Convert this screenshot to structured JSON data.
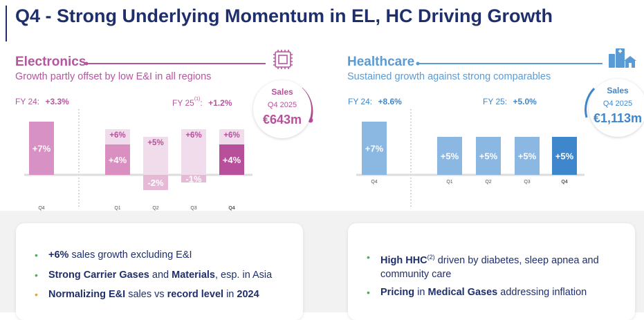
{
  "title": "Q4 - Strong Underlying Momentum in EL, HC Driving Growth",
  "electronics": {
    "name": "Electronics",
    "subtitle": "Growth partly offset by low E&I in all regions",
    "fy24_label": "FY 24:",
    "fy24_value": "+3.3%",
    "fy25_label": "FY 25",
    "fy25_footnote": "(1)",
    "fy25_colon": ":",
    "fy25_value": "+1.2%",
    "sales_label": "Sales",
    "sales_period": "Q4 2025",
    "sales_value": "€643m",
    "icon": "chip-icon",
    "colors": {
      "title": "#b5559e",
      "dark": "#b84f9b",
      "light": "#e8c9dd",
      "fy24": "#d891c4",
      "total_label": "#b84f9b"
    }
  },
  "healthcare": {
    "name": "Healthcare",
    "subtitle": "Sustained growth against strong comparables",
    "fy24_label": "FY 24:",
    "fy24_value": "+8.6%",
    "fy25_label": "FY 25:",
    "fy25_value": "+5.0%",
    "sales_label": "Sales",
    "sales_period": "Q4 2025",
    "sales_value": "€1,113m",
    "icon": "hospital-icon",
    "colors": {
      "title": "#5b9bd5",
      "dark": "#3f87cc",
      "light": "#8ab8e3"
    }
  },
  "chart_data": [
    {
      "type": "bar",
      "title": "Electronics",
      "categories": [
        "Q4",
        "Q1",
        "Q2",
        "Q3",
        "Q4"
      ],
      "series": [
        {
          "name": "",
          "values": [
            7,
            4,
            -2,
            -1,
            4
          ],
          "labels": [
            "+7%",
            "+4%",
            "-2%",
            "-1%",
            "+4%"
          ]
        },
        {
          "name": "",
          "values": [
            null,
            6,
            5,
            6,
            6
          ],
          "labels": [
            "",
            "+6%",
            "+5%",
            "+6%",
            "+6%"
          ]
        }
      ],
      "ylim": [
        -3,
        9
      ]
    },
    {
      "type": "bar",
      "title": "Healthcare",
      "categories": [
        "Q4",
        "Q1",
        "Q2",
        "Q3",
        "Q4"
      ],
      "series": [
        {
          "name": "",
          "values": [
            7,
            5,
            5,
            5,
            5
          ],
          "labels": [
            "+7%",
            "+5%",
            "+5%",
            "+5%",
            "+5%"
          ]
        }
      ],
      "ylim": [
        -3,
        9
      ]
    }
  ],
  "bullets_left": [
    {
      "color": "#4caf50",
      "parts": [
        {
          "t": "+6%",
          "b": true
        },
        {
          "t": " sales growth excluding E&I",
          "b": false
        }
      ]
    },
    {
      "color": "#4caf50",
      "parts": [
        {
          "t": "Strong Carrier Gases",
          "b": true
        },
        {
          "t": " and ",
          "b": false
        },
        {
          "t": "Materials",
          "b": true
        },
        {
          "t": ", esp. in Asia",
          "b": false
        }
      ]
    },
    {
      "color": "#f0a030",
      "parts": [
        {
          "t": "Normalizing E&I",
          "b": true
        },
        {
          "t": " sales vs ",
          "b": false
        },
        {
          "t": "record level",
          "b": true
        },
        {
          "t": " in ",
          "b": false
        },
        {
          "t": "2024",
          "b": true
        }
      ]
    }
  ],
  "bullets_right": [
    {
      "color": "#4caf50",
      "parts": [
        {
          "t": "High HHC",
          "b": true
        },
        {
          "t": "(2)",
          "b": false,
          "sup": true
        },
        {
          "t": " driven by diabetes, sleep apnea and community care",
          "b": false
        }
      ]
    },
    {
      "color": "#4caf50",
      "parts": [
        {
          "t": "Pricing",
          "b": true
        },
        {
          "t": " in ",
          "b": false
        },
        {
          "t": "Medical Gases",
          "b": true
        },
        {
          "t": " addressing inflation",
          "b": false
        }
      ]
    }
  ]
}
